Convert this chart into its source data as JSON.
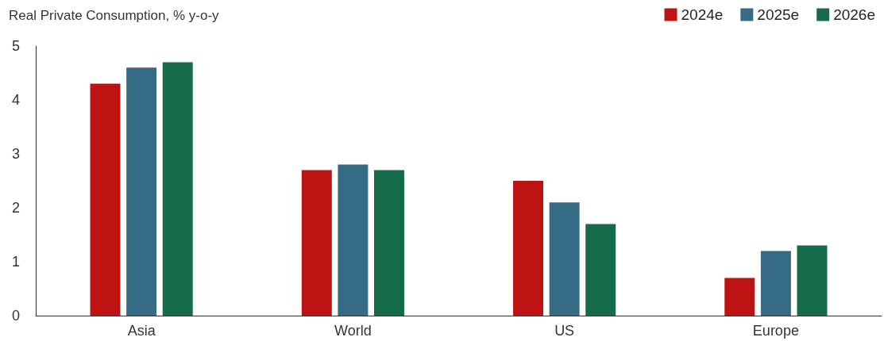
{
  "chart_data": {
    "type": "bar",
    "title": "Real Private Consumption, % y-o-y",
    "categories": [
      "Asia",
      "World",
      "US",
      "Europe"
    ],
    "series": [
      {
        "name": "2024e",
        "color": "#be1313",
        "values": [
          4.3,
          2.7,
          2.5,
          0.7
        ]
      },
      {
        "name": "2025e",
        "color": "#356b84",
        "values": [
          4.6,
          2.8,
          2.1,
          1.2
        ]
      },
      {
        "name": "2026e",
        "color": "#166b4a",
        "values": [
          4.7,
          2.7,
          1.7,
          1.3
        ]
      }
    ],
    "ylim": [
      0,
      5
    ],
    "yticks": [
      0,
      1,
      2,
      3,
      4,
      5
    ],
    "grid": false,
    "legend": "top right"
  }
}
